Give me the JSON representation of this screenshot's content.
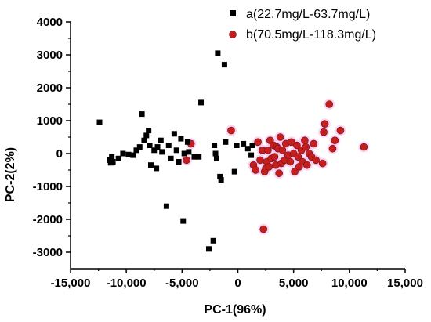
{
  "chart_data": {
    "type": "scatter",
    "xlabel": "PC-1(96%)",
    "ylabel": "PC-2(2%)",
    "xlim": [
      -15000,
      15000
    ],
    "ylim": [
      -3500,
      4000
    ],
    "xticks": [
      -15000,
      -10000,
      -5000,
      0,
      5000,
      10000,
      15000
    ],
    "xtick_labels": [
      "-15,000",
      "-10,000",
      "-5,000",
      "0",
      "5,000",
      "10,000",
      "15,000"
    ],
    "yticks": [
      -3000,
      -2000,
      -1000,
      0,
      1000,
      2000,
      3000,
      4000
    ],
    "ytick_labels": [
      "-3000",
      "-2000",
      "-1000",
      "0",
      "1000",
      "2000",
      "3000",
      "4000"
    ],
    "grid": false,
    "legend_position": "top-right",
    "series": [
      {
        "name": "a(22.7mg/L-63.7mg/L)",
        "marker": "square",
        "color": "#000000",
        "points": [
          [
            -12400,
            950
          ],
          [
            -11500,
            -200
          ],
          [
            -11400,
            -280
          ],
          [
            -11300,
            -100
          ],
          [
            -11200,
            -250
          ],
          [
            -10700,
            -150
          ],
          [
            -10300,
            0
          ],
          [
            -9800,
            -30
          ],
          [
            -9400,
            -50
          ],
          [
            -9100,
            100
          ],
          [
            -8800,
            200
          ],
          [
            -8600,
            1200
          ],
          [
            -8400,
            400
          ],
          [
            -8200,
            550
          ],
          [
            -8000,
            700
          ],
          [
            -7900,
            250
          ],
          [
            -7800,
            -350
          ],
          [
            -7500,
            100
          ],
          [
            -7300,
            -450
          ],
          [
            -7200,
            200
          ],
          [
            -6900,
            400
          ],
          [
            -6800,
            50
          ],
          [
            -6400,
            -1600
          ],
          [
            -6200,
            250
          ],
          [
            -6000,
            -150
          ],
          [
            -5700,
            600
          ],
          [
            -5500,
            100
          ],
          [
            -5300,
            -250
          ],
          [
            -5100,
            450
          ],
          [
            -4900,
            -2050
          ],
          [
            -4800,
            0
          ],
          [
            -4500,
            350
          ],
          [
            -4400,
            50
          ],
          [
            -3900,
            -100
          ],
          [
            -3500,
            -100
          ],
          [
            -3300,
            1550
          ],
          [
            -2600,
            -2900
          ],
          [
            -2200,
            -2650
          ],
          [
            -2100,
            250
          ],
          [
            -2000,
            0
          ],
          [
            -1900,
            -150
          ],
          [
            -1800,
            3050
          ],
          [
            -1600,
            -700
          ],
          [
            -1500,
            -800
          ],
          [
            -1200,
            2700
          ],
          [
            -1100,
            350
          ],
          [
            -300,
            -550
          ],
          [
            -100,
            250
          ],
          [
            500,
            300
          ],
          [
            900,
            150
          ],
          [
            1200,
            -50
          ],
          [
            1300,
            250
          ]
        ]
      },
      {
        "name": "b(70.5mg/L-118.3mg/L)",
        "marker": "circle",
        "color": "#c41e1e",
        "points": [
          [
            -4600,
            -200
          ],
          [
            -4200,
            300
          ],
          [
            -600,
            700
          ],
          [
            1400,
            -350
          ],
          [
            1600,
            -500
          ],
          [
            1800,
            350
          ],
          [
            2000,
            -200
          ],
          [
            2200,
            100
          ],
          [
            2300,
            -2300
          ],
          [
            2400,
            -550
          ],
          [
            2500,
            -450
          ],
          [
            2600,
            -250
          ],
          [
            2700,
            100
          ],
          [
            2800,
            -400
          ],
          [
            2900,
            400
          ],
          [
            3000,
            -150
          ],
          [
            3200,
            250
          ],
          [
            3300,
            -100
          ],
          [
            3400,
            -350
          ],
          [
            3500,
            200
          ],
          [
            3600,
            150
          ],
          [
            3700,
            -600
          ],
          [
            3800,
            500
          ],
          [
            3900,
            -300
          ],
          [
            4000,
            100
          ],
          [
            4200,
            -200
          ],
          [
            4300,
            300
          ],
          [
            4500,
            -50
          ],
          [
            4700,
            -250
          ],
          [
            4800,
            350
          ],
          [
            5000,
            0
          ],
          [
            5100,
            -550
          ],
          [
            5300,
            250
          ],
          [
            5400,
            -100
          ],
          [
            5500,
            -400
          ],
          [
            5700,
            100
          ],
          [
            5800,
            -250
          ],
          [
            6000,
            400
          ],
          [
            6100,
            200
          ],
          [
            6200,
            -350
          ],
          [
            6400,
            0
          ],
          [
            6600,
            -100
          ],
          [
            6800,
            300
          ],
          [
            7000,
            -200
          ],
          [
            7600,
            -300
          ],
          [
            7700,
            650
          ],
          [
            7800,
            900
          ],
          [
            8200,
            1500
          ],
          [
            8500,
            150
          ],
          [
            8700,
            400
          ],
          [
            9200,
            700
          ],
          [
            11300,
            200
          ]
        ]
      }
    ]
  }
}
